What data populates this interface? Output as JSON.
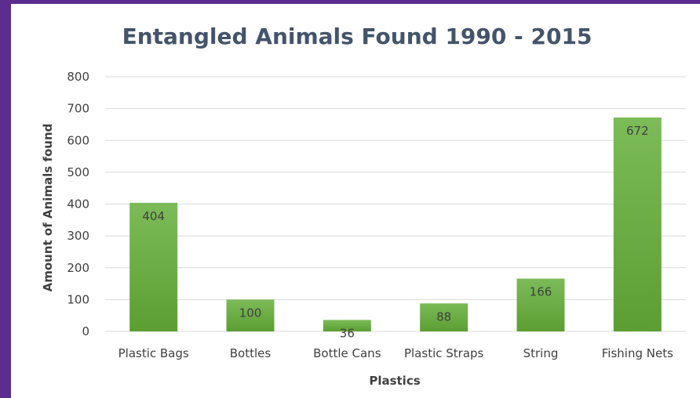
{
  "chart_data": {
    "type": "bar",
    "title": "Entangled Animals Found 1990 - 2015",
    "xlabel": "Plastics",
    "ylabel": "Amount of Animals found",
    "categories": [
      "Plastic Bags",
      "Bottles",
      "Bottle Cans",
      "Plastic Straps",
      "String",
      "Fishing Nets"
    ],
    "values": [
      404,
      100,
      36,
      88,
      166,
      672
    ],
    "data_labels": [
      "404",
      "100",
      "36",
      "88",
      "166",
      "672"
    ],
    "yticks": [
      "0",
      "100",
      "200",
      "300",
      "400",
      "500",
      "600",
      "700",
      "800"
    ],
    "ylim": [
      0,
      800
    ],
    "grid": true,
    "legend": "none",
    "colors": {
      "bar_top": "#7cbb58",
      "bar_bottom": "#5c9e32",
      "grid": "#d9d9d9",
      "title": "#44546a",
      "frame": "#5b2d8e"
    }
  }
}
